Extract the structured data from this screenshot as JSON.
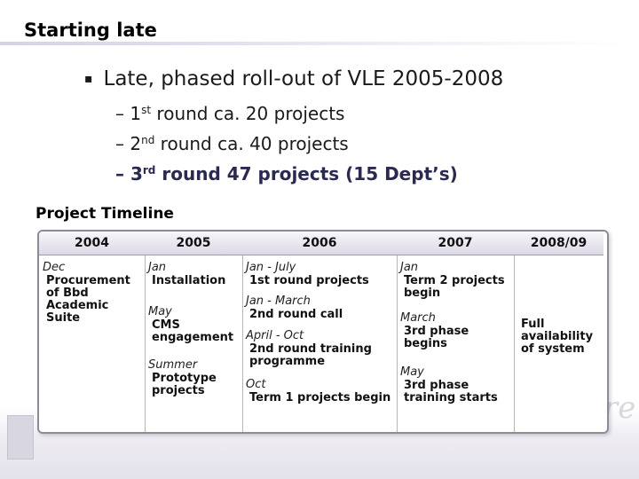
{
  "slide": {
    "title": "Starting late",
    "bullet": "Late, phased roll-out of VLE 2005-2008",
    "sub_items": [
      {
        "dash": "–",
        "num": "1",
        "sup": "st",
        "text": " round ca. 20 projects"
      },
      {
        "dash": "–",
        "num": "2",
        "sup": "nd",
        "text": " round ca. 40 projects"
      },
      {
        "dash": "–",
        "num": "3",
        "sup": "rd",
        "text": " round 47 projects (15 Dept’s)"
      }
    ],
    "timeline_title": "Project Timeline"
  },
  "timeline": {
    "columns": [
      {
        "year": "2004",
        "events": [
          {
            "time": "Dec",
            "desc": "Procurement of Bbd Academic Suite"
          }
        ]
      },
      {
        "year": "2005",
        "events": [
          {
            "time": "Jan",
            "desc": "Installation"
          },
          {
            "time": "May",
            "desc": "CMS engagement"
          },
          {
            "time": "Summer",
            "desc": "Prototype projects"
          }
        ]
      },
      {
        "year": "2006",
        "events": [
          {
            "time": "Jan - July",
            "desc": "1st round projects"
          },
          {
            "time": "Jan - March",
            "desc": "2nd round call"
          },
          {
            "time": "April - Oct",
            "desc": "2nd round training programme"
          },
          {
            "time": "Oct",
            "desc": "Term 1 projects begin"
          }
        ]
      },
      {
        "year": "2007",
        "events": [
          {
            "time": "Jan",
            "desc": "Term 2 projects begin"
          },
          {
            "time": "March",
            "desc": "3rd phase begins"
          },
          {
            "time": "May",
            "desc": "3rd phase training starts"
          }
        ]
      },
      {
        "year": "2008/09",
        "events": [
          {
            "time": "",
            "desc": "Full availability of system"
          }
        ]
      }
    ]
  }
}
